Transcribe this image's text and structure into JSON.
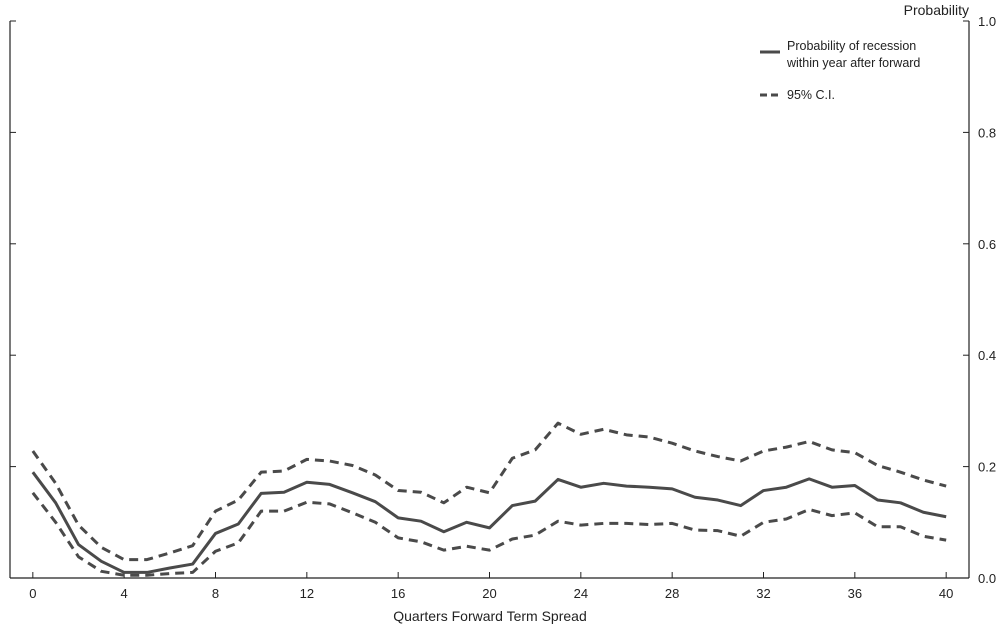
{
  "chart_data": {
    "type": "line",
    "xlabel": "Quarters Forward Term Spread",
    "ylabel": "Probability",
    "xlim": [
      -1,
      41
    ],
    "ylim": [
      0,
      1.0
    ],
    "x_ticks": [
      0,
      4,
      8,
      12,
      16,
      20,
      24,
      28,
      32,
      36,
      40
    ],
    "y_ticks": [
      0.0,
      0.2,
      0.4,
      0.6,
      0.8,
      1.0
    ],
    "y_tick_labels": [
      "0.0",
      "0.2",
      "0.4",
      "0.6",
      "0.8",
      "1.0"
    ],
    "y_axis_side": "right",
    "grid": false,
    "legend_position": "top-right",
    "x": [
      0,
      1,
      2,
      3,
      4,
      5,
      6,
      7,
      8,
      9,
      10,
      11,
      12,
      13,
      14,
      15,
      16,
      17,
      18,
      19,
      20,
      21,
      22,
      23,
      24,
      25,
      26,
      27,
      28,
      29,
      30,
      31,
      32,
      33,
      34,
      35,
      36,
      37,
      38,
      39,
      40
    ],
    "series": [
      {
        "name": "Probability of recession within year after forward",
        "legend_lines": [
          "Probability of recession",
          "within year after forward"
        ],
        "style": "solid",
        "color": "#4a4a4a",
        "values": [
          0.19,
          0.135,
          0.06,
          0.03,
          0.01,
          0.01,
          0.018,
          0.025,
          0.08,
          0.097,
          0.152,
          0.154,
          0.172,
          0.168,
          0.153,
          0.137,
          0.108,
          0.102,
          0.083,
          0.1,
          0.09,
          0.13,
          0.138,
          0.177,
          0.163,
          0.17,
          0.165,
          0.163,
          0.16,
          0.145,
          0.14,
          0.13,
          0.157,
          0.163,
          0.178,
          0.163,
          0.166,
          0.14,
          0.135,
          0.118,
          0.11
        ]
      },
      {
        "name": "95% C.I.",
        "legend_lines": [
          "95% C.I."
        ],
        "style": "dashed",
        "color": "#4a4a4a",
        "values": [
          0.228,
          0.17,
          0.095,
          0.055,
          0.033,
          0.033,
          0.045,
          0.058,
          0.12,
          0.14,
          0.19,
          0.192,
          0.213,
          0.21,
          0.202,
          0.185,
          0.157,
          0.154,
          0.135,
          0.163,
          0.153,
          0.215,
          0.23,
          0.278,
          0.258,
          0.267,
          0.257,
          0.253,
          0.242,
          0.228,
          0.218,
          0.21,
          0.228,
          0.235,
          0.245,
          0.23,
          0.225,
          0.202,
          0.19,
          0.176,
          0.165
        ]
      },
      {
        "name": "95% C.I.",
        "legend_lines": [],
        "style": "dashed",
        "color": "#4a4a4a",
        "values": [
          0.153,
          0.1,
          0.038,
          0.012,
          0.005,
          0.005,
          0.008,
          0.01,
          0.048,
          0.063,
          0.12,
          0.12,
          0.136,
          0.133,
          0.117,
          0.1,
          0.072,
          0.065,
          0.05,
          0.057,
          0.05,
          0.07,
          0.077,
          0.102,
          0.095,
          0.098,
          0.098,
          0.096,
          0.098,
          0.086,
          0.085,
          0.075,
          0.1,
          0.106,
          0.123,
          0.112,
          0.117,
          0.092,
          0.092,
          0.075,
          0.068
        ]
      }
    ]
  }
}
